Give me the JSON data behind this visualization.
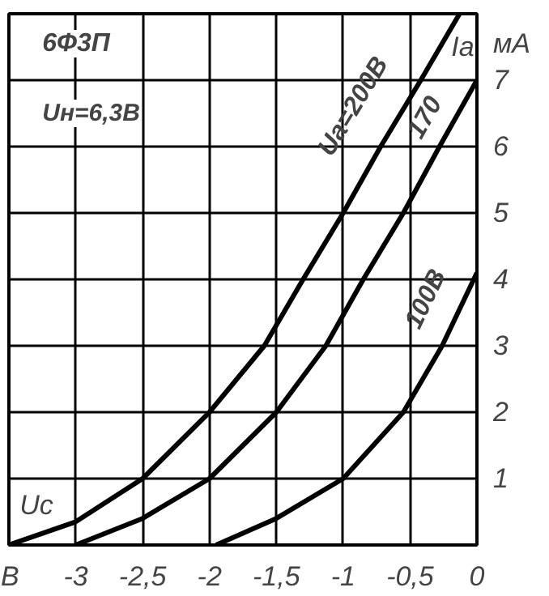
{
  "chart_data": {
    "type": "line",
    "title": "6Ф3П",
    "subtitle": "Uн=6,3В",
    "xlabel": "Uc",
    "ylabel": "Ia",
    "annotations": [
      "мА"
    ],
    "xlim": [
      -3.5,
      0
    ],
    "ylim": [
      0,
      8
    ],
    "xticks": [
      {
        "value": -3.5,
        "label": "В"
      },
      -3,
      {
        "value": -2.5,
        "label": "-2,5"
      },
      -2,
      {
        "value": -1.5,
        "label": "-1,5"
      },
      -1,
      {
        "value": -0.5,
        "label": "-0,5"
      },
      0
    ],
    "yticks": [
      {
        "value": 0,
        "label": null
      },
      1,
      2,
      3,
      4,
      5,
      6,
      7,
      {
        "value": 8,
        "label": null
      }
    ],
    "grid": true,
    "marker": "none",
    "line_style": "solid",
    "series": [
      {
        "name": "Ua=200В",
        "color": "#000000",
        "x": [
          -3.5,
          -3,
          -2.5,
          -2,
          -1.59,
          -1.3,
          -1,
          -0.72,
          -0.42,
          -0.13
        ],
        "values": [
          0,
          0.35,
          1,
          2,
          3,
          4,
          5,
          6,
          7,
          8
        ]
      },
      {
        "name": "170",
        "color": "#000000",
        "x": [
          -3,
          -2.5,
          -2,
          -1.5,
          -1.13,
          -0.85,
          -0.55,
          -0.28,
          0
        ],
        "values": [
          0,
          0.4,
          1,
          2,
          3,
          4,
          5,
          6,
          7
        ]
      },
      {
        "name": "100В",
        "color": "#000000",
        "x": [
          -1.95,
          -1.5,
          -1,
          -0.55,
          -0.26,
          0
        ],
        "values": [
          0,
          0.4,
          1,
          2,
          3,
          4.1
        ]
      }
    ]
  }
}
